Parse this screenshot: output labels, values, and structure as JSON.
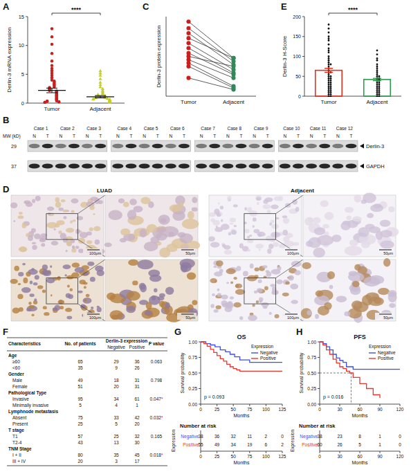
{
  "chart_data": [
    {
      "type": "strip",
      "panel_label": "A",
      "y_label": "Derlin-3 mRNA expression",
      "categories": [
        "Tumor",
        "Adjacent"
      ],
      "groups": [
        {
          "color": "#c8201e",
          "marker": "circle",
          "values": [
            12.9,
            11.5,
            10.2,
            8.6,
            7.3,
            6.5,
            6.0,
            5.6,
            5.2,
            4.8,
            4.4,
            4.0,
            3.8,
            3.6,
            3.4,
            3.2,
            3.0,
            2.8,
            2.7,
            2.6,
            2.4,
            2.3,
            2.2,
            2.1,
            2.0,
            1.9,
            1.8,
            1.7,
            1.6,
            1.5,
            1.4,
            1.3,
            1.2,
            1.1,
            1.0,
            0.9,
            0.8,
            0.7,
            0.6,
            0.5,
            0.4,
            0.35,
            0.3,
            0.25,
            0.2,
            0.15,
            0.1
          ]
        },
        {
          "color": "#c5cf2a",
          "marker": "triangle",
          "values": [
            5.6,
            5.2,
            4.8,
            4.2,
            3.6,
            3.2,
            2.8,
            2.5,
            2.2,
            2.0,
            1.8,
            1.6,
            1.5,
            1.4,
            1.3,
            1.2,
            1.1,
            1.0,
            0.95,
            0.9,
            0.85,
            0.8,
            0.75,
            0.7,
            0.65,
            0.6,
            0.55,
            0.5,
            0.45,
            0.4,
            0.35,
            0.3,
            0.25,
            0.2,
            0.15,
            0.1
          ]
        }
      ],
      "means": [
        2.2,
        1.1
      ],
      "errors": [
        0.4,
        0.2
      ],
      "ylim": [
        0,
        15
      ],
      "yticks": [
        0,
        5,
        10,
        15
      ],
      "annotation": "****"
    },
    {
      "type": "paired",
      "panel_label": "C",
      "y_label": "Derlin-3 protein expression",
      "categories": [
        "Tumor",
        "Adjacent"
      ],
      "groups": [
        {
          "color": "#c8201e",
          "marker": "circle",
          "values": [
            2.55,
            2.35,
            2.2,
            2.05,
            1.9,
            1.75,
            1.6,
            1.5,
            1.4,
            1.3,
            1.2,
            0.85
          ]
        },
        {
          "color": "#2e8b57",
          "marker": "circle",
          "values": [
            1.45,
            1.35,
            1.25,
            1.45,
            1.1,
            1.0,
            0.95,
            1.2,
            0.85,
            0.6,
            0.55,
            0.5
          ]
        }
      ],
      "ylim": [
        0.3,
        2.7
      ],
      "tick_labels": "x"
    },
    {
      "type": "bar",
      "panel_label": "E",
      "y_label": "Derlin-3 H-Score",
      "categories": [
        "Tumor",
        "Adjacent"
      ],
      "values": [
        65,
        42
      ],
      "errors": [
        5,
        3
      ],
      "colors": [
        "#e0301e",
        "#2e9b4e"
      ],
      "points": [
        [
          180,
          170,
          160,
          150,
          145,
          140,
          130,
          120,
          115,
          110,
          100,
          95,
          90,
          85,
          80,
          80,
          75,
          70,
          65,
          60,
          60,
          55,
          50,
          50,
          45,
          45,
          40,
          40,
          35,
          35,
          30,
          30,
          25,
          25,
          20,
          20,
          15,
          15,
          10,
          10,
          5,
          5,
          0,
          0
        ],
        [
          115,
          105,
          95,
          90,
          80,
          75,
          70,
          65,
          60,
          55,
          50,
          50,
          45,
          45,
          40,
          40,
          35,
          35,
          30,
          30,
          25,
          25,
          20,
          20,
          15,
          15,
          10,
          10,
          5,
          5,
          0,
          0
        ]
      ],
      "ylim": [
        0,
        200
      ],
      "yticks": [
        0,
        50,
        100,
        150,
        200
      ],
      "annotation": "****"
    },
    {
      "type": "km",
      "panel_label": "G",
      "title": "OS",
      "x_label": "Months",
      "y_label": "Survival probability",
      "xlim": [
        0,
        125
      ],
      "xticks": [
        0,
        25,
        50,
        75,
        100,
        125
      ],
      "ylim": [
        0,
        1
      ],
      "yticks": [
        {
          "value": 0,
          "label": "0.00"
        },
        {
          "value": 0.25,
          "label": "0.25"
        },
        {
          "value": 0.5,
          "label": "0.50"
        },
        {
          "value": 0.75,
          "label": "0.75"
        },
        {
          "value": 1,
          "label": "1.00"
        }
      ],
      "legend": "upper right",
      "legend_title": "Expression",
      "series": [
        {
          "name": "Negative",
          "color": "#3a4ef0",
          "x": [
            0,
            8,
            15,
            22,
            30,
            38,
            45,
            52,
            60,
            75,
            125
          ],
          "values": [
            1,
            0.97,
            0.95,
            0.92,
            0.87,
            0.84,
            0.8,
            0.76,
            0.71,
            0.67,
            0.67
          ]
        },
        {
          "name": "Positive",
          "color": "#e8352e",
          "x": [
            0,
            5,
            10,
            15,
            20,
            25,
            30,
            35,
            40,
            45,
            50,
            55,
            60,
            125
          ],
          "values": [
            1,
            0.97,
            0.93,
            0.88,
            0.83,
            0.78,
            0.73,
            0.69,
            0.64,
            0.6,
            0.57,
            0.55,
            0.53,
            0.53
          ]
        }
      ],
      "annotation": "p = 0.093",
      "risk_table": {
        "title": "Number at risk",
        "y_label": "Expression",
        "x_label": "Months",
        "counts": [
          [
            38,
            36,
            32,
            11,
            2,
            0
          ],
          [
            55,
            49,
            34,
            19,
            6,
            2
          ]
        ]
      }
    },
    {
      "type": "km",
      "panel_label": "H",
      "title": "PFS",
      "x_label": "Months",
      "y_label": "Survival probability",
      "xlim": [
        0,
        120
      ],
      "xticks": [
        0,
        30,
        60,
        90,
        120
      ],
      "ylim": [
        0,
        1
      ],
      "yticks": [
        {
          "value": 0,
          "label": "0.00"
        },
        {
          "value": 0.25,
          "label": "0.25"
        },
        {
          "value": 0.5,
          "label": "0.50"
        },
        {
          "value": 0.75,
          "label": "0.75"
        },
        {
          "value": 1,
          "label": "1.00"
        }
      ],
      "legend": "upper right",
      "legend_title": "Expression",
      "series": [
        {
          "name": "Negative",
          "color": "#3a4ef0",
          "x": [
            0,
            5,
            10,
            15,
            20,
            25,
            30,
            35,
            40,
            50,
            120
          ],
          "values": [
            1,
            0.97,
            0.92,
            0.87,
            0.8,
            0.74,
            0.7,
            0.67,
            0.6,
            0.56,
            0.56
          ]
        },
        {
          "name": "Positive",
          "color": "#e8352e",
          "x": [
            0,
            5,
            10,
            15,
            20,
            25,
            30,
            35,
            40,
            45,
            50,
            60,
            70,
            80,
            90
          ],
          "values": [
            1,
            0.95,
            0.87,
            0.8,
            0.72,
            0.66,
            0.6,
            0.57,
            0.53,
            0.5,
            0.43,
            0.33,
            0.25,
            0.15,
            0.1
          ]
        }
      ],
      "median": {
        "x": 47,
        "y": 0.5
      },
      "annotation": "p = 0.016",
      "risk_table": {
        "title": "Number at risk",
        "y_label": "Expression",
        "x_label": "Months",
        "counts": [
          [
            38,
            23,
            8,
            1,
            0
          ],
          [
            60,
            26,
            5,
            1,
            0
          ]
        ]
      }
    }
  ],
  "blot": {
    "panel_label": "B",
    "mw_label": "MW (kD)",
    "cases": [
      "Case 1",
      "Case 2",
      "Case 3",
      "Case 4",
      "Case 5",
      "Case 6",
      "Case 7",
      "Case 8",
      "Case 9",
      "Case 10",
      "Case 11",
      "Case 12"
    ],
    "lanes": [
      "N",
      "T"
    ],
    "proteins": [
      {
        "mw": 29,
        "name": "Derlin-3"
      },
      {
        "mw": 37,
        "name": "GAPDH"
      }
    ]
  },
  "ihc": {
    "panel_label": "D",
    "columns": [
      "LUAD",
      "Adjacent"
    ],
    "scale_bars": [
      "100μm",
      "50μm"
    ]
  },
  "table": {
    "panel_label": "F",
    "header": [
      "Characteristics",
      "No. of patients",
      "Derlin-3 expression",
      "P value"
    ],
    "subheader": [
      "Negative",
      "Positive"
    ],
    "groups": [
      {
        "name": "Age",
        "p": "0.063",
        "rows": [
          [
            "≥60",
            65,
            29,
            36
          ],
          [
            "<60",
            35,
            9,
            26
          ]
        ]
      },
      {
        "name": "Gender",
        "p": "0.798",
        "rows": [
          [
            "Male",
            49,
            18,
            31
          ],
          [
            "Female",
            51,
            20,
            31
          ]
        ]
      },
      {
        "name": "Pathological Type",
        "p": "0.047*",
        "rows": [
          [
            "Invasive",
            95,
            34,
            61
          ],
          [
            "Minimally invasive",
            5,
            4,
            1
          ]
        ]
      },
      {
        "name": "Lymphnode metastasis",
        "p": "0.032*",
        "rows": [
          [
            "Absent",
            75,
            33,
            42
          ],
          [
            "Present",
            25,
            5,
            20
          ]
        ]
      },
      {
        "name": "T stage",
        "p": "0.165",
        "rows": [
          [
            "T1",
            57,
            25,
            32
          ],
          [
            "T2-4",
            43,
            13,
            30
          ]
        ]
      },
      {
        "name": "TNM Stage",
        "p": "0.018*",
        "rows": [
          [
            "I + II",
            80,
            35,
            45
          ],
          [
            "III + IV",
            20,
            3,
            17
          ]
        ]
      }
    ]
  }
}
